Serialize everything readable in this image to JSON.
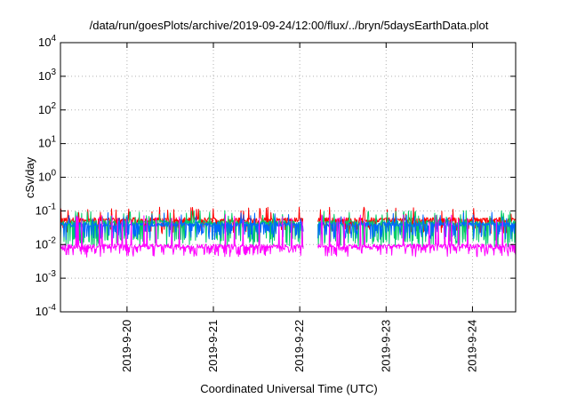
{
  "chart_data": {
    "type": "line",
    "title": "/data/run/goesPlots/archive/2019-09-24/12:00/flux/../bryn/5daysEarthData.plot",
    "xlabel": "Coordinated Universal Time (UTC)",
    "ylabel": "cSv/day",
    "y_scale": "log",
    "ylim": [
      0.0001,
      10000
    ],
    "y_ticks": [
      {
        "base": "10",
        "exp": "-4",
        "value": 0.0001
      },
      {
        "base": "10",
        "exp": "-3",
        "value": 0.001
      },
      {
        "base": "10",
        "exp": "-2",
        "value": 0.01
      },
      {
        "base": "10",
        "exp": "-1",
        "value": 0.1
      },
      {
        "base": "10",
        "exp": "0",
        "value": 1
      },
      {
        "base": "10",
        "exp": "1",
        "value": 10
      },
      {
        "base": "10",
        "exp": "2",
        "value": 100
      },
      {
        "base": "10",
        "exp": "3",
        "value": 1000
      },
      {
        "base": "10",
        "exp": "4",
        "value": 10000
      }
    ],
    "xlim": [
      "2019-09-19T05:30",
      "2019-09-24T12:00"
    ],
    "x_ticks": [
      {
        "label": "2019-9-20",
        "date": "2019-09-20T00:00"
      },
      {
        "label": "2019-9-21",
        "date": "2019-09-21T00:00"
      },
      {
        "label": "2019-9-22",
        "date": "2019-09-22T00:00"
      },
      {
        "label": "2019-9-23",
        "date": "2019-09-23T00:00"
      },
      {
        "label": "2019-9-24",
        "date": "2019-09-24T00:00"
      }
    ],
    "grid": true,
    "gap": [
      "2019-09-22T01:00",
      "2019-09-22T05:00"
    ],
    "series": [
      {
        "color": "#ff0000",
        "baseline": 0.055,
        "low": 0.03,
        "high": 0.1
      },
      {
        "color": "#00cc66",
        "baseline": 0.045,
        "low": 0.012,
        "high": 0.08
      },
      {
        "color": "#0066ff",
        "baseline": 0.04,
        "low": 0.02,
        "high": 0.07
      },
      {
        "color": "#ff00ff",
        "baseline": 0.009,
        "low": 0.006,
        "high": 0.06
      }
    ]
  }
}
